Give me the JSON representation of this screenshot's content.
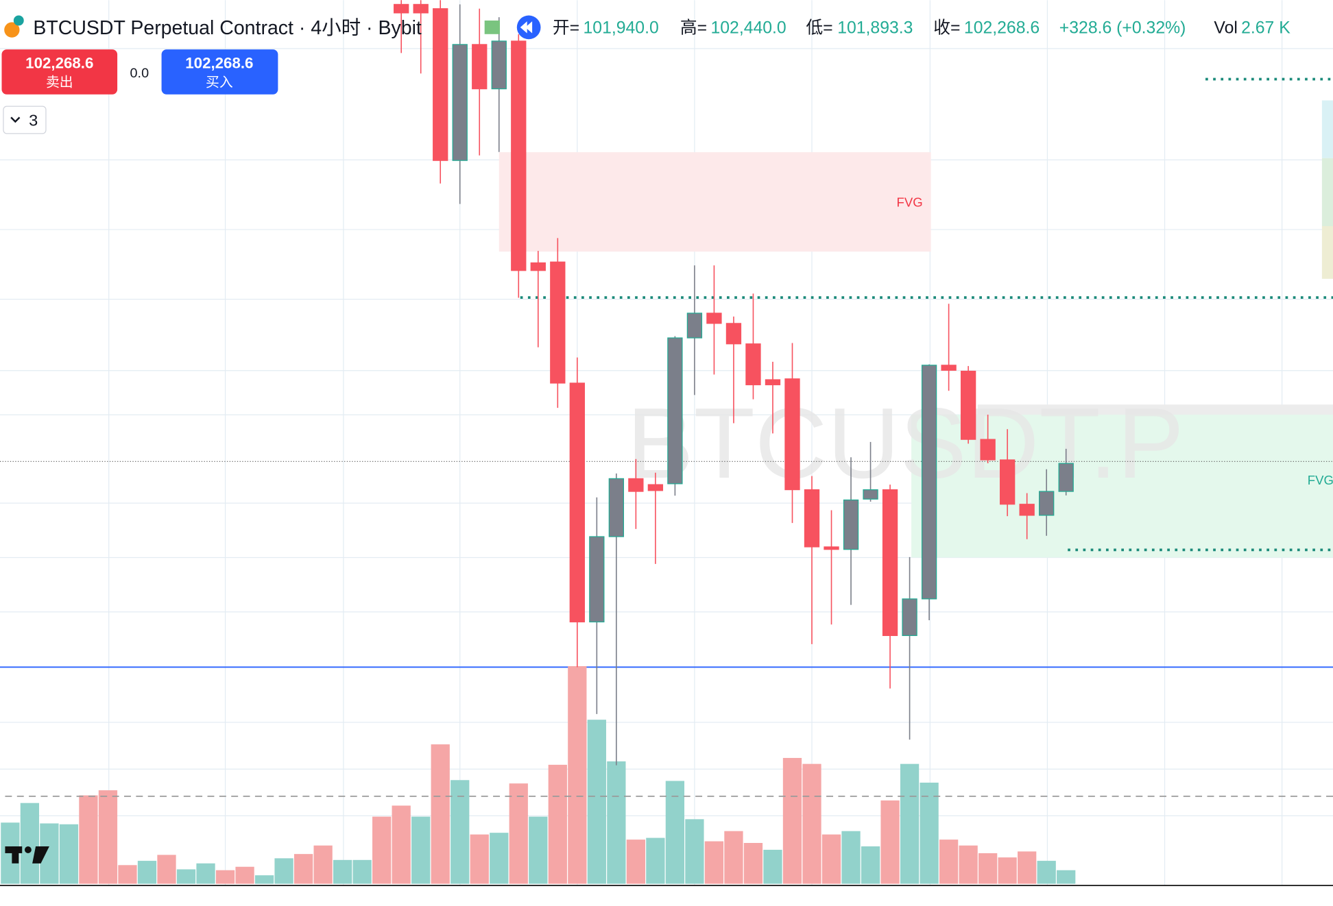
{
  "header": {
    "symbol": "BTCUSDT Perpetual Contract · 4小时 · Bybit",
    "open_label": "开=",
    "open": "101,940.0",
    "high_label": "高=",
    "high": "102,440.0",
    "low_label": "低=",
    "low": "101,893.3",
    "close_label": "收=",
    "close": "102,268.6",
    "change": "+328.6 (+0.32%)",
    "vol_label": "Vol",
    "vol": "2.67 K"
  },
  "trade": {
    "sell_price": "102,268.6",
    "sell_label": "卖出",
    "spread": "0.0",
    "buy_price": "102,268.6",
    "buy_label": "买入"
  },
  "indicator_count": 3,
  "watermark": "BTCUSDT.P",
  "zones": [
    "FVG",
    "FVG"
  ],
  "chart_data": {
    "type": "candlestick",
    "ylim": [
      97340,
      107700
    ],
    "up_color": "#7b7f8a",
    "up_border": "#22ab94",
    "down_color": "#f7525f",
    "candles": {
      "open": [
        null,
        null,
        null,
        null,
        null,
        null,
        null,
        null,
        null,
        null,
        null,
        null,
        null,
        null,
        null,
        null,
        null,
        null,
        null,
        null,
        107650,
        107650,
        107600,
        105820,
        107180,
        106660,
        107220,
        104620,
        104630,
        103210,
        100410,
        101410,
        102090,
        102020,
        102030,
        103740,
        104030,
        103910,
        103670,
        103250,
        103260,
        101960,
        101290,
        101260,
        101850,
        101960,
        100250,
        100680,
        103420,
        103350,
        102550,
        102310,
        101790,
        101660,
        101940
      ],
      "high": [
        null,
        null,
        null,
        null,
        null,
        null,
        null,
        null,
        null,
        null,
        null,
        null,
        null,
        null,
        null,
        null,
        null,
        null,
        null,
        null,
        107700,
        107700,
        107700,
        107650,
        107600,
        107500,
        107300,
        104760,
        104910,
        103510,
        101870,
        102150,
        102320,
        102160,
        103760,
        104590,
        104590,
        103990,
        104260,
        103460,
        103680,
        102120,
        101720,
        102340,
        102520,
        102020,
        101170,
        103430,
        104140,
        103410,
        102840,
        102670,
        101920,
        102200,
        102440
      ],
      "low": [
        null,
        null,
        null,
        null,
        null,
        null,
        null,
        null,
        null,
        null,
        null,
        null,
        null,
        null,
        null,
        null,
        null,
        null,
        null,
        null,
        107080,
        106840,
        105550,
        105310,
        105880,
        105920,
        104210,
        103630,
        102920,
        99880,
        99330,
        98730,
        101500,
        101090,
        101890,
        103070,
        103310,
        102740,
        103020,
        102620,
        101570,
        100150,
        100380,
        100610,
        101820,
        99630,
        99030,
        100430,
        103120,
        102500,
        102270,
        101650,
        101380,
        101420,
        101893.3
      ],
      "close": [
        null,
        null,
        null,
        null,
        null,
        null,
        null,
        null,
        null,
        null,
        null,
        null,
        null,
        null,
        null,
        null,
        null,
        null,
        null,
        null,
        107550,
        107550,
        105820,
        107180,
        106660,
        107220,
        104530,
        104530,
        103210,
        100410,
        101410,
        102090,
        101940,
        101950,
        103740,
        104030,
        103910,
        103670,
        103190,
        103190,
        101960,
        101290,
        101260,
        101840,
        101960,
        100250,
        100680,
        103420,
        103360,
        102550,
        102310,
        101790,
        101660,
        101940,
        102268.6
      ]
    },
    "volume": {
      "ylim": [
        0,
        43400
      ],
      "values": [
        12020,
        15870,
        11860,
        11690,
        17370,
        18370,
        3670,
        4510,
        5680,
        2840,
        4010,
        2670,
        3340,
        1670,
        5010,
        5850,
        7520,
        4680,
        4680,
        13190,
        15360,
        13190,
        27390,
        20370,
        9690,
        10020,
        19710,
        13190,
        23380,
        42750,
        32230,
        24050,
        8680,
        9020,
        20210,
        12690,
        8350,
        10350,
        8020,
        6680,
        24720,
        23550,
        9690,
        10350,
        7350,
        16370,
        23550,
        19870,
        8680,
        7520,
        6010,
        5180,
        6350,
        4510,
        2670
      ],
      "colors": [
        "#92d2cb",
        "#92d2cb",
        "#92d2cb",
        "#92d2cb",
        "#f5a6a6",
        "#f5a6a6",
        "#f5a6a6",
        "#92d2cb",
        "#f5a6a6",
        "#92d2cb",
        "#92d2cb",
        "#f5a6a6",
        "#f5a6a6",
        "#92d2cb",
        "#92d2cb",
        "#f5a6a6",
        "#f5a6a6",
        "#92d2cb",
        "#92d2cb",
        "#f5a6a6",
        "#f5a6a6",
        "#92d2cb",
        "#f5a6a6",
        "#92d2cb",
        "#f5a6a6",
        "#92d2cb",
        "#f5a6a6",
        "#92d2cb",
        "#f5a6a6",
        "#f5a6a6",
        "#92d2cb",
        "#92d2cb",
        "#f5a6a6",
        "#92d2cb",
        "#92d2cb",
        "#92d2cb",
        "#f5a6a6",
        "#f5a6a6",
        "#f5a6a6",
        "#92d2cb",
        "#f5a6a6",
        "#f5a6a6",
        "#f5a6a6",
        "#92d2cb",
        "#92d2cb",
        "#f5a6a6",
        "#92d2cb",
        "#92d2cb",
        "#f5a6a6",
        "#f5a6a6",
        "#f5a6a6",
        "#f5a6a6",
        "#f5a6a6",
        "#92d2cb",
        "#92d2cb"
      ]
    }
  }
}
